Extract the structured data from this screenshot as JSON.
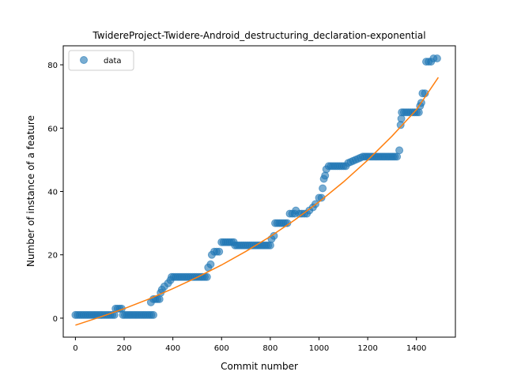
{
  "chart_data": {
    "type": "scatter",
    "title": "TwidereProject-Twidere-Android_destructuring_declaration-exponential",
    "xlabel": "Commit number",
    "ylabel": "Number of instance of a feature",
    "xlim": [
      -50,
      1560
    ],
    "ylim": [
      -6,
      86
    ],
    "xticks": [
      0,
      200,
      400,
      600,
      800,
      1000,
      1200,
      1400
    ],
    "yticks": [
      0,
      20,
      40,
      60,
      80
    ],
    "grid": false,
    "legend": {
      "placement": "top-left",
      "entries": [
        "data"
      ]
    },
    "colors": {
      "data": "#1f77b4",
      "fit": "#ff7f0e"
    },
    "series": [
      {
        "name": "data",
        "kind": "scatter",
        "points": [
          [
            0,
            1
          ],
          [
            160,
            1
          ],
          [
            165,
            3
          ],
          [
            190,
            3
          ],
          [
            195,
            1
          ],
          [
            320,
            1
          ],
          [
            310,
            5
          ],
          [
            320,
            6
          ],
          [
            345,
            6
          ],
          [
            350,
            8
          ],
          [
            355,
            9
          ],
          [
            365,
            10
          ],
          [
            380,
            11
          ],
          [
            390,
            12
          ],
          [
            395,
            13
          ],
          [
            540,
            13
          ],
          [
            545,
            16
          ],
          [
            555,
            17
          ],
          [
            560,
            20
          ],
          [
            570,
            21
          ],
          [
            590,
            21
          ],
          [
            600,
            24
          ],
          [
            650,
            24
          ],
          [
            655,
            23
          ],
          [
            800,
            23
          ],
          [
            805,
            25
          ],
          [
            815,
            26
          ],
          [
            820,
            30
          ],
          [
            870,
            30
          ],
          [
            880,
            33
          ],
          [
            900,
            33
          ],
          [
            905,
            34
          ],
          [
            920,
            33
          ],
          [
            950,
            33
          ],
          [
            960,
            34
          ],
          [
            975,
            35
          ],
          [
            985,
            36
          ],
          [
            1000,
            38
          ],
          [
            1010,
            38
          ],
          [
            1015,
            41
          ],
          [
            1020,
            44
          ],
          [
            1025,
            45
          ],
          [
            1030,
            47
          ],
          [
            1040,
            48
          ],
          [
            1110,
            48
          ],
          [
            1120,
            49
          ],
          [
            1150,
            50
          ],
          [
            1180,
            51
          ],
          [
            1320,
            51
          ],
          [
            1330,
            53
          ],
          [
            1335,
            61
          ],
          [
            1338,
            63
          ],
          [
            1340,
            65
          ],
          [
            1410,
            65
          ],
          [
            1415,
            67
          ],
          [
            1420,
            68
          ],
          [
            1425,
            71
          ],
          [
            1435,
            71
          ],
          [
            1440,
            81
          ],
          [
            1460,
            81
          ],
          [
            1470,
            82
          ],
          [
            1485,
            82
          ]
        ]
      },
      {
        "name": "",
        "kind": "line",
        "points": [
          [
            0,
            -2.2
          ],
          [
            100,
            0.3
          ],
          [
            200,
            3.0
          ],
          [
            300,
            6.0
          ],
          [
            400,
            9.3
          ],
          [
            500,
            12.9
          ],
          [
            600,
            16.8
          ],
          [
            700,
            21.1
          ],
          [
            800,
            25.8
          ],
          [
            900,
            31.0
          ],
          [
            1000,
            36.7
          ],
          [
            1100,
            43.0
          ],
          [
            1200,
            49.9
          ],
          [
            1300,
            57.5
          ],
          [
            1400,
            65.8
          ],
          [
            1490,
            76.0
          ]
        ]
      }
    ]
  }
}
